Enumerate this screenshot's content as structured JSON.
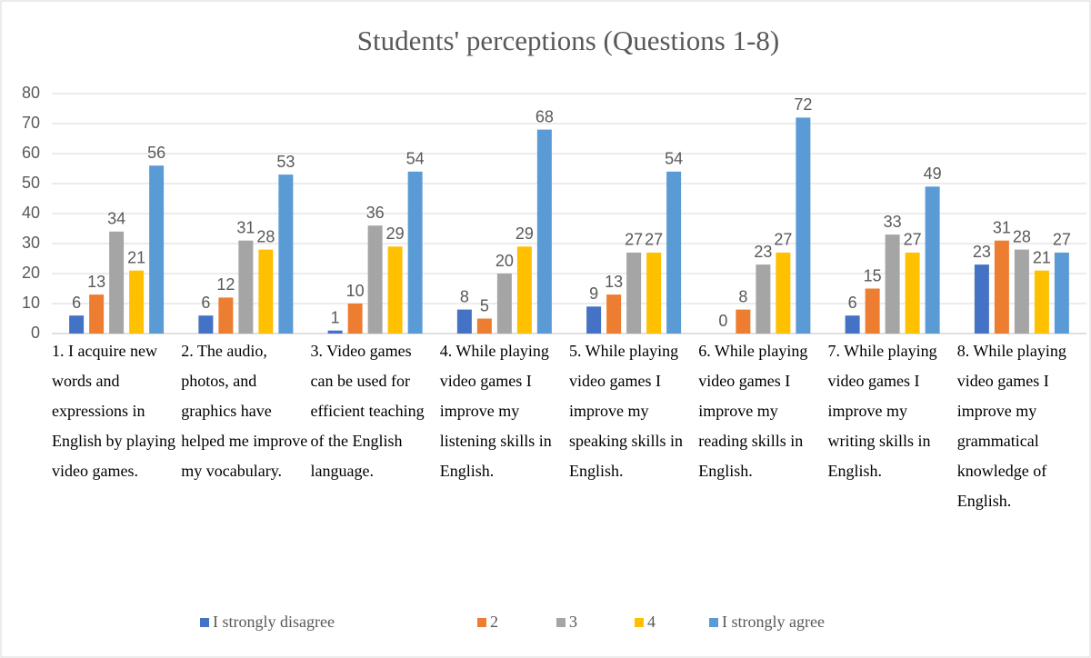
{
  "chart_data": {
    "type": "bar",
    "title": "Students' perceptions (Questions 1-8)",
    "categories": [
      "1. I acquire new words and expressions in English by playing video games.",
      "2. The audio, photos, and graphics have helped me improve my vocabulary.",
      "3. Video games can be used for efficient teaching of the English language.",
      "4. While playing video games I improve my listening skills in English.",
      "5. While playing video games I improve my speaking skills in English.",
      "6. While playing video games I improve my reading skills in English.",
      "7. While playing video games I improve my writing skills in English.",
      "8. While playing video games I improve my grammatical knowledge of English."
    ],
    "series": [
      {
        "name": "I strongly disagree",
        "color": "#4472c4",
        "values": [
          6,
          6,
          1,
          8,
          9,
          0,
          6,
          23
        ]
      },
      {
        "name": "2",
        "color": "#ed7d31",
        "values": [
          13,
          12,
          10,
          5,
          13,
          8,
          15,
          31
        ]
      },
      {
        "name": "3",
        "color": "#a5a5a5",
        "values": [
          34,
          31,
          36,
          20,
          27,
          23,
          33,
          28
        ]
      },
      {
        "name": "4",
        "color": "#ffc000",
        "values": [
          21,
          28,
          29,
          29,
          27,
          27,
          27,
          21
        ]
      },
      {
        "name": "I strongly agree",
        "color": "#5b9bd5",
        "values": [
          56,
          53,
          54,
          68,
          54,
          72,
          49,
          27
        ]
      }
    ],
    "ylim": [
      0,
      80
    ],
    "yticks": [
      0,
      10,
      20,
      30,
      40,
      50,
      60,
      70,
      80
    ],
    "grid": true,
    "legend": "bottom"
  }
}
